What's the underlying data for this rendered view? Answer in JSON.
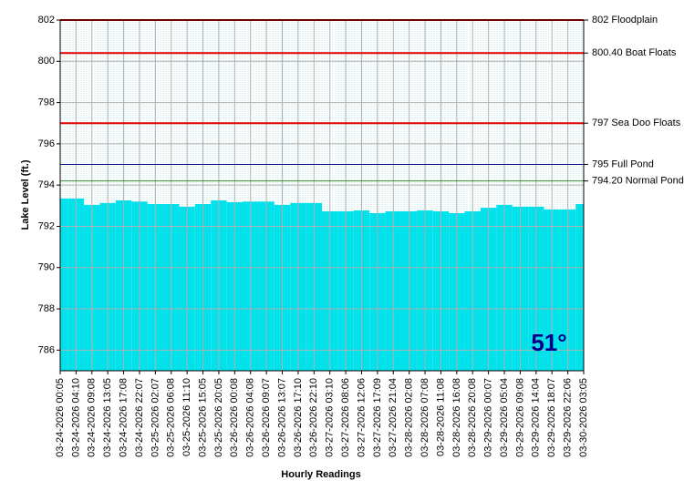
{
  "chart_data": {
    "type": "bar",
    "ylabel": "Lake Level (ft.)",
    "xlabel": "Hourly Readings",
    "categories": [
      "03-24-2026 00:05",
      "03-24-2026 04:10",
      "03-24-2026 09:08",
      "03-24-2026 13:05",
      "03-24-2026 17:08",
      "03-24-2026 22:07",
      "03-25-2026 02:07",
      "03-25-2026 06:08",
      "03-25-2026 11:10",
      "03-25-2026 15:05",
      "03-25-2026 20:05",
      "03-26-2026 00:08",
      "03-26-2026 04:08",
      "03-26-2026 09:07",
      "03-26-2026 13:07",
      "03-26-2026 17:10",
      "03-26-2026 22:10",
      "03-27-2026 03:10",
      "03-27-2026 08:06",
      "03-27-2026 12:06",
      "03-27-2026 17:09",
      "03-27-2026 21:04",
      "03-28-2026 02:08",
      "03-28-2026 07:08",
      "03-28-2026 11:08",
      "03-28-2026 16:08",
      "03-28-2026 20:08",
      "03-29-2026 00:07",
      "03-29-2026 05:04",
      "03-29-2026 09:08",
      "03-29-2026 14:04",
      "03-29-2026 18:07",
      "03-29-2026 22:06",
      "03-30-2026 03:05"
    ],
    "values": [
      793.35,
      793.35,
      793.04,
      793.13,
      793.26,
      793.2,
      793.08,
      793.08,
      792.95,
      793.08,
      793.26,
      793.17,
      793.2,
      793.2,
      793.04,
      793.13,
      793.13,
      792.73,
      792.73,
      792.77,
      792.64,
      792.73,
      792.73,
      792.77,
      792.73,
      792.64,
      792.73,
      792.9,
      793.04,
      792.95,
      792.95,
      792.82,
      792.82,
      793.08
    ],
    "color": "#00e5ee",
    "ylim": [
      785,
      802
    ],
    "yticks": [
      786,
      788,
      790,
      792,
      794,
      796,
      798,
      800,
      802
    ],
    "grid": true,
    "reference_lines": [
      {
        "value": 802,
        "label": "802 Floodplain",
        "color": "#e00000"
      },
      {
        "value": 800.4,
        "label": "800.40 Boat Floats",
        "color": "#e00000"
      },
      {
        "value": 797,
        "label": "797 Sea Doo Floats",
        "color": "#e00000"
      },
      {
        "value": 795,
        "label": "795 Full Pond",
        "color": "#000080"
      },
      {
        "value": 794.2,
        "label": "794.20 Normal Pond",
        "color": "#2e8b2e"
      }
    ],
    "annotation": "51°"
  }
}
